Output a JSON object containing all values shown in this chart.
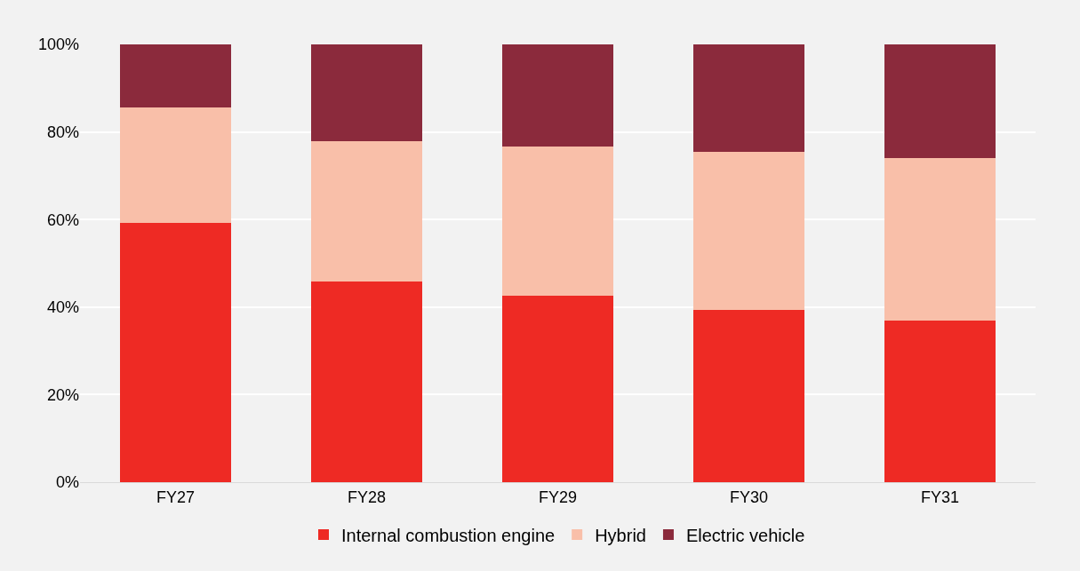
{
  "chart_data": {
    "type": "bar",
    "stacked": true,
    "categories": [
      "FY27",
      "FY28",
      "FY29",
      "FY30",
      "FY31"
    ],
    "series": [
      {
        "name": "Internal combustion engine",
        "color": "#ee2a24",
        "values": [
          59.3,
          45.8,
          42.6,
          39.3,
          36.9
        ]
      },
      {
        "name": "Hybrid",
        "color": "#f9bfa9",
        "values": [
          26.2,
          32.0,
          34.0,
          36.1,
          37.2
        ]
      },
      {
        "name": "Electric vehicle",
        "color": "#8b2a3c",
        "values": [
          14.5,
          22.2,
          23.4,
          24.6,
          25.9
        ]
      }
    ],
    "ylim": [
      0,
      100
    ],
    "yticks": [
      {
        "value": 0,
        "label": "0%"
      },
      {
        "value": 20,
        "label": "20%"
      },
      {
        "value": 40,
        "label": "40%"
      },
      {
        "value": 60,
        "label": "60%"
      },
      {
        "value": 80,
        "label": "80%"
      },
      {
        "value": 100,
        "label": "100%"
      }
    ],
    "grid": "y",
    "legend": "bottom"
  }
}
